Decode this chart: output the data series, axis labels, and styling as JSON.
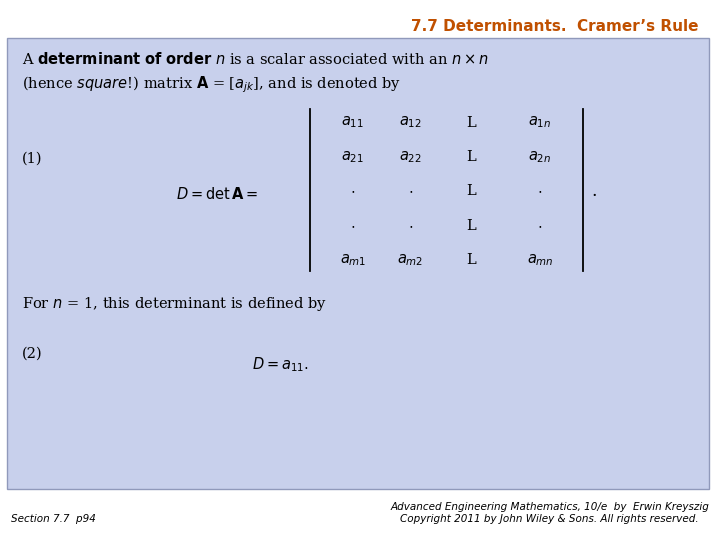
{
  "title": "7.7 Determinants.  Cramer’s Rule",
  "title_color": "#C05000",
  "title_teal": "#008B8B",
  "bg_color": "#FFFFFF",
  "box_color": "#C8D0EC",
  "box_edge_color": "#9099BB",
  "footer_left": "Section 7.7  p94",
  "footer_right": "Advanced Engineering Mathematics, 10/e  by  Erwin Kreyszig\nCopyright 2011 by John Wiley & Sons. All rights reserved.",
  "figsize": [
    7.2,
    5.4
  ],
  "dpi": 100
}
